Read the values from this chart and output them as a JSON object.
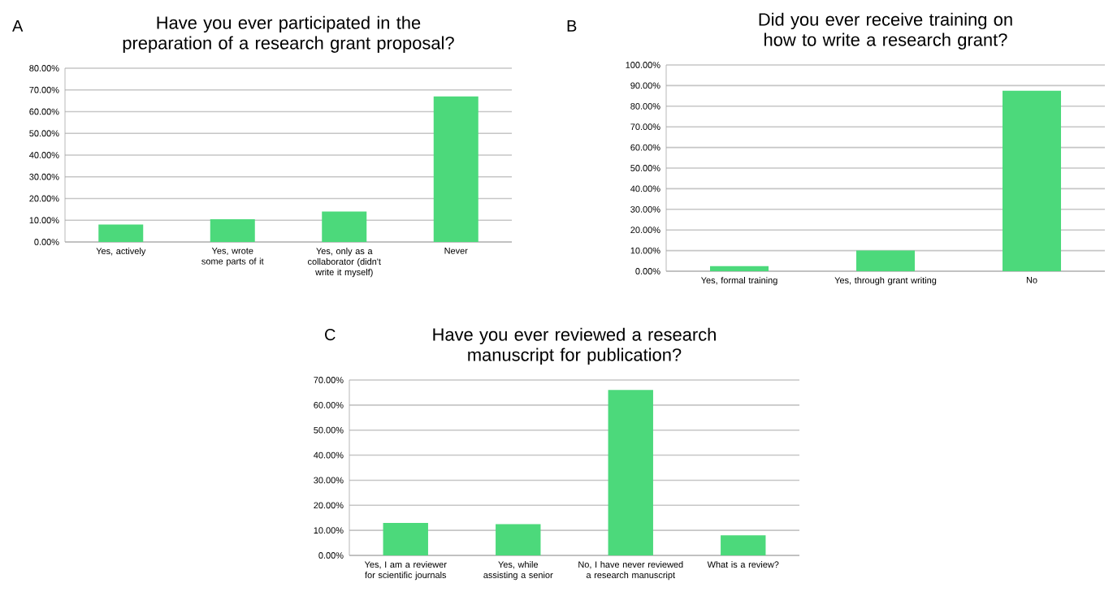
{
  "chart_data": [
    {
      "type": "bar",
      "title": "Have you ever participated in the preparation of a research grant proposal?",
      "annotations": [
        "A"
      ],
      "categories": [
        "Yes, actively",
        "Yes, wrote some parts of it",
        "Yes, only as a collaborator (didn't write it myself)",
        "Never"
      ],
      "values": [
        8,
        10.5,
        14,
        67
      ],
      "color": "#4cd97b",
      "ylim": [
        0,
        80
      ],
      "yticks": [
        {
          "value": 0,
          "label": "0.00%"
        },
        {
          "value": 10,
          "label": "10.00%"
        },
        {
          "value": 20,
          "label": "20.00%"
        },
        {
          "value": 30,
          "label": "30.00%"
        },
        {
          "value": 40,
          "label": "40.00%"
        },
        {
          "value": 50,
          "label": "50.00%"
        },
        {
          "value": 60,
          "label": "60.00%"
        },
        {
          "value": 70,
          "label": "70.00%"
        },
        {
          "value": 80,
          "label": "80.00%"
        }
      ],
      "grid": "y"
    },
    {
      "type": "bar",
      "title": "Did you ever receive training on how to write a research grant?",
      "annotations": [
        "B"
      ],
      "categories": [
        "Yes, formal training",
        "Yes, through grant writing",
        "No"
      ],
      "values": [
        2.5,
        10,
        87.5
      ],
      "color": "#4cd97b",
      "ylim": [
        0,
        100
      ],
      "yticks": [
        {
          "value": 0,
          "label": "0.00%"
        },
        {
          "value": 10,
          "label": "10.00%"
        },
        {
          "value": 20,
          "label": "20.00%"
        },
        {
          "value": 30,
          "label": "30.00%"
        },
        {
          "value": 40,
          "label": "40.00%"
        },
        {
          "value": 50,
          "label": "50.00%"
        },
        {
          "value": 60,
          "label": "60.00%"
        },
        {
          "value": 70,
          "label": "70.00%"
        },
        {
          "value": 80,
          "label": "80.00%"
        },
        {
          "value": 90,
          "label": "90.00%"
        },
        {
          "value": 100,
          "label": "100.00%"
        }
      ],
      "grid": "y"
    },
    {
      "type": "bar",
      "title": "Have you ever reviewed a research manuscript for publication?",
      "annotations": [
        "C"
      ],
      "categories": [
        "Yes, I am a reviewer for scientific journals",
        "Yes, while assisting a senior",
        "No, I have never reviewed a research manuscript",
        "What is a review?"
      ],
      "values": [
        13,
        12.5,
        66,
        8
      ],
      "color": "#4cd97b",
      "ylim": [
        0,
        70
      ],
      "yticks": [
        {
          "value": 0,
          "label": "0.00%"
        },
        {
          "value": 10,
          "label": "10.00%"
        },
        {
          "value": 20,
          "label": "20.00%"
        },
        {
          "value": 30,
          "label": "30.00%"
        },
        {
          "value": 40,
          "label": "40.00%"
        },
        {
          "value": 50,
          "label": "50.00%"
        },
        {
          "value": 60,
          "label": "60.00%"
        },
        {
          "value": 70,
          "label": "70.00%"
        }
      ],
      "grid": "y"
    }
  ]
}
